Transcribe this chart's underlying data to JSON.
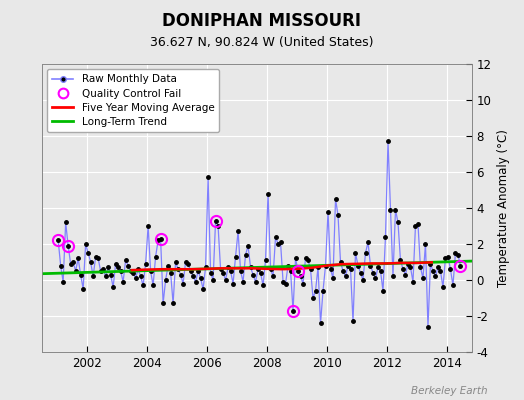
{
  "title": "DONIPHAN MISSOURI",
  "subtitle": "36.627 N, 90.824 W (United States)",
  "ylabel_right": "Temperature Anomaly (°C)",
  "watermark": "Berkeley Earth",
  "xlim": [
    2000.5,
    2014.83
  ],
  "ylim": [
    -4,
    12
  ],
  "yticks": [
    -4,
    -2,
    0,
    2,
    4,
    6,
    8,
    10,
    12
  ],
  "xticks": [
    2002,
    2004,
    2006,
    2008,
    2010,
    2012,
    2014
  ],
  "background_color": "#e8e8e8",
  "plot_bg_color": "#e8e8e8",
  "raw_line_color": "#8080ff",
  "raw_marker_color": "#000000",
  "qc_color": "#ff00ff",
  "ma_color": "#ff0000",
  "trend_color": "#00bb00",
  "raw_x": [
    2001.042,
    2001.125,
    2001.208,
    2001.292,
    2001.375,
    2001.458,
    2001.542,
    2001.625,
    2001.708,
    2001.792,
    2001.875,
    2001.958,
    2002.042,
    2002.125,
    2002.208,
    2002.292,
    2002.375,
    2002.458,
    2002.542,
    2002.625,
    2002.708,
    2002.792,
    2002.875,
    2002.958,
    2003.042,
    2003.125,
    2003.208,
    2003.292,
    2003.375,
    2003.458,
    2003.542,
    2003.625,
    2003.708,
    2003.792,
    2003.875,
    2003.958,
    2004.042,
    2004.125,
    2004.208,
    2004.292,
    2004.375,
    2004.458,
    2004.542,
    2004.625,
    2004.708,
    2004.792,
    2004.875,
    2004.958,
    2005.042,
    2005.125,
    2005.208,
    2005.292,
    2005.375,
    2005.458,
    2005.542,
    2005.625,
    2005.708,
    2005.792,
    2005.875,
    2005.958,
    2006.042,
    2006.125,
    2006.208,
    2006.292,
    2006.375,
    2006.458,
    2006.542,
    2006.625,
    2006.708,
    2006.792,
    2006.875,
    2006.958,
    2007.042,
    2007.125,
    2007.208,
    2007.292,
    2007.375,
    2007.458,
    2007.542,
    2007.625,
    2007.708,
    2007.792,
    2007.875,
    2007.958,
    2008.042,
    2008.125,
    2008.208,
    2008.292,
    2008.375,
    2008.458,
    2008.542,
    2008.625,
    2008.708,
    2008.792,
    2008.875,
    2008.958,
    2009.042,
    2009.125,
    2009.208,
    2009.292,
    2009.375,
    2009.458,
    2009.542,
    2009.625,
    2009.708,
    2009.792,
    2009.875,
    2009.958,
    2010.042,
    2010.125,
    2010.208,
    2010.292,
    2010.375,
    2010.458,
    2010.542,
    2010.625,
    2010.708,
    2010.792,
    2010.875,
    2010.958,
    2011.042,
    2011.125,
    2011.208,
    2011.292,
    2011.375,
    2011.458,
    2011.542,
    2011.625,
    2011.708,
    2011.792,
    2011.875,
    2011.958,
    2012.042,
    2012.125,
    2012.208,
    2012.292,
    2012.375,
    2012.458,
    2012.542,
    2012.625,
    2012.708,
    2012.792,
    2012.875,
    2012.958,
    2013.042,
    2013.125,
    2013.208,
    2013.292,
    2013.375,
    2013.458,
    2013.542,
    2013.625,
    2013.708,
    2013.792,
    2013.875,
    2013.958,
    2014.042,
    2014.125,
    2014.208,
    2014.292,
    2014.375,
    2014.458
  ],
  "raw_y": [
    2.2,
    0.8,
    -0.1,
    3.2,
    1.9,
    0.9,
    1.0,
    0.5,
    1.2,
    0.3,
    -0.5,
    2.0,
    1.5,
    1.0,
    0.2,
    1.3,
    1.2,
    0.5,
    0.6,
    0.2,
    0.7,
    0.3,
    -0.4,
    0.9,
    0.7,
    0.5,
    -0.1,
    1.1,
    0.8,
    0.5,
    0.4,
    0.1,
    0.6,
    0.2,
    -0.3,
    0.9,
    3.0,
    0.5,
    -0.3,
    1.3,
    2.2,
    2.3,
    -1.3,
    0.0,
    0.8,
    0.4,
    -1.3,
    1.0,
    0.6,
    0.3,
    -0.2,
    1.0,
    0.9,
    0.5,
    0.2,
    -0.1,
    0.5,
    0.1,
    -0.5,
    0.7,
    5.7,
    0.4,
    0.0,
    3.3,
    3.0,
    0.6,
    0.4,
    0.0,
    0.7,
    0.5,
    -0.2,
    1.3,
    2.7,
    0.5,
    -0.1,
    1.4,
    1.9,
    0.7,
    0.3,
    -0.1,
    0.6,
    0.4,
    -0.3,
    1.1,
    4.8,
    0.6,
    0.2,
    2.4,
    2.0,
    2.1,
    -0.1,
    -0.2,
    0.8,
    0.5,
    -1.7,
    1.2,
    0.5,
    0.2,
    -0.2,
    1.2,
    1.1,
    0.6,
    -1.0,
    -0.6,
    0.7,
    -2.4,
    -0.6,
    0.8,
    3.8,
    0.6,
    0.1,
    4.5,
    3.6,
    1.0,
    0.5,
    0.2,
    0.8,
    0.6,
    -2.3,
    1.5,
    0.8,
    0.4,
    0.0,
    1.5,
    2.1,
    0.8,
    0.4,
    0.1,
    0.7,
    0.5,
    -0.6,
    2.4,
    7.7,
    3.9,
    0.2,
    3.9,
    3.2,
    1.1,
    0.6,
    0.3,
    0.9,
    0.7,
    -0.1,
    3.0,
    3.1,
    0.7,
    0.1,
    2.0,
    -2.6,
    0.9,
    0.5,
    0.2,
    0.7,
    0.5,
    -0.4,
    1.2,
    1.3,
    0.6,
    -0.3,
    1.5,
    1.4,
    0.8
  ],
  "qc_fail_x": [
    2001.042,
    2001.375,
    2004.458,
    2006.292,
    2008.875,
    2009.042,
    2014.458
  ],
  "qc_fail_y": [
    2.2,
    1.9,
    2.3,
    3.3,
    -1.7,
    0.5,
    0.8
  ],
  "ma_x": [
    2003.5,
    2004.0,
    2004.5,
    2005.0,
    2005.5,
    2006.0,
    2006.5,
    2007.0,
    2007.5,
    2008.0,
    2008.5,
    2009.0,
    2009.5,
    2010.0,
    2010.5,
    2011.0,
    2011.5,
    2012.0,
    2012.5,
    2013.0,
    2013.5
  ],
  "ma_y": [
    0.55,
    0.58,
    0.6,
    0.6,
    0.6,
    0.62,
    0.65,
    0.65,
    0.65,
    0.62,
    0.6,
    0.62,
    0.68,
    0.8,
    0.88,
    0.9,
    0.92,
    0.92,
    0.95,
    0.95,
    0.98
  ],
  "trend_x": [
    2000.5,
    2014.83
  ],
  "trend_y": [
    0.35,
    1.05
  ]
}
